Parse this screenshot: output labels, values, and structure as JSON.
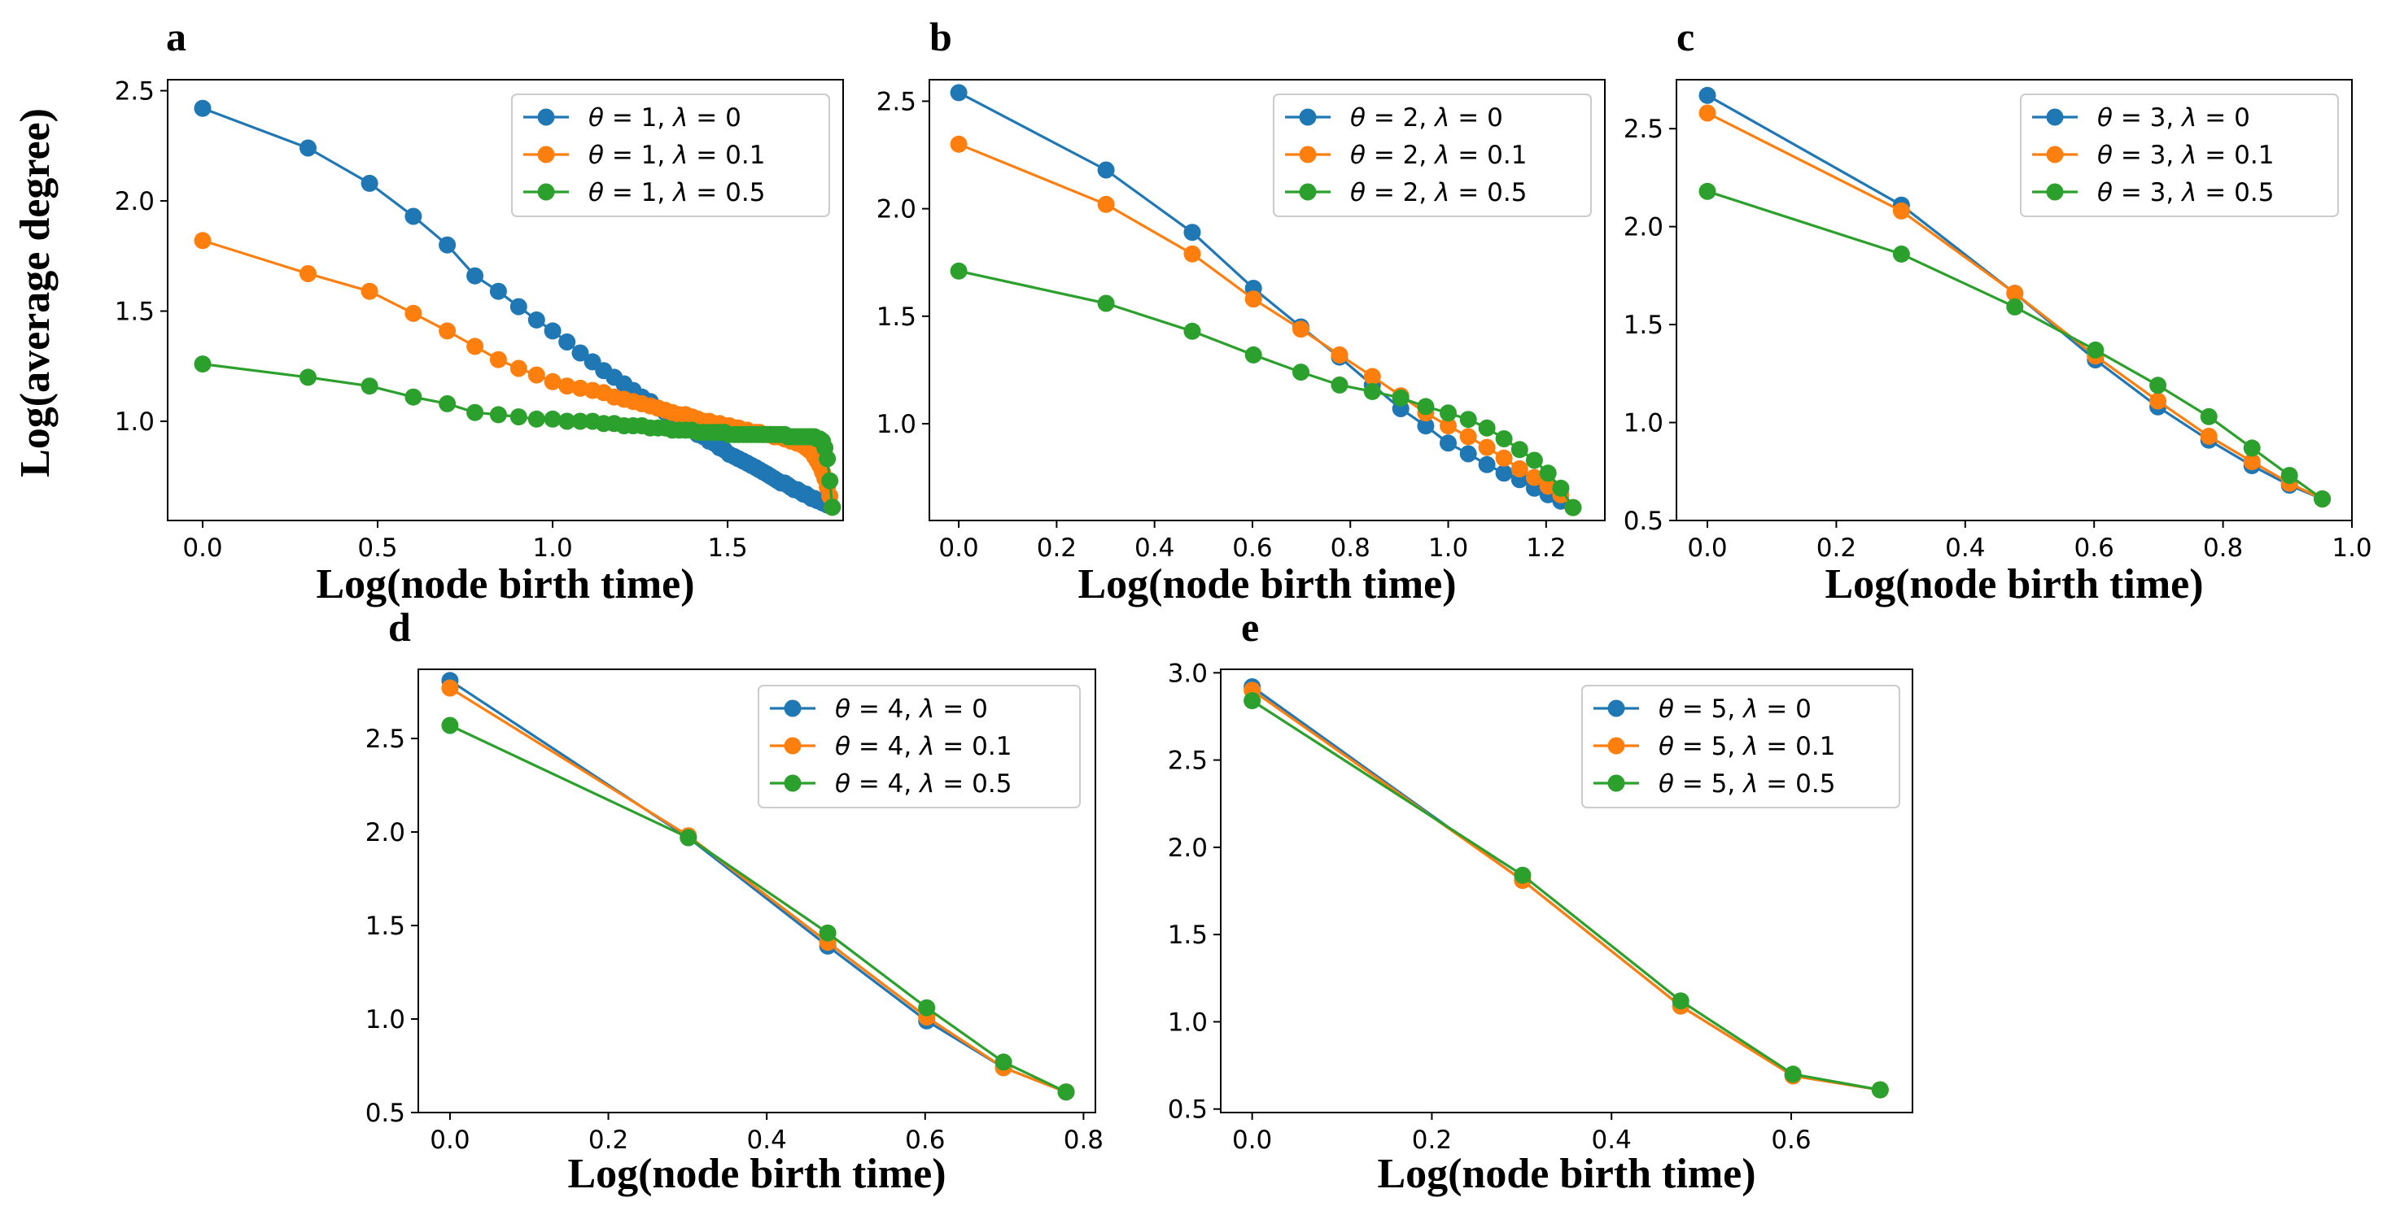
{
  "figure": {
    "ylabel": "Log(average degree)"
  },
  "colors": {
    "blue": "#1f77b4",
    "orange": "#ff7f0e",
    "green": "#2ca02c"
  },
  "chart_data": [
    {
      "panel": "a",
      "type": "line",
      "title": "",
      "xlabel": "Log(node birth time)",
      "xlim": [
        -0.1,
        1.83
      ],
      "ylim": [
        0.55,
        2.55
      ],
      "xticks": [
        0.0,
        0.5,
        1.0,
        1.5
      ],
      "xtick_labels": [
        "0.0",
        "0.5",
        "1.0",
        "1.5"
      ],
      "yticks": [
        1.0,
        1.5,
        2.0,
        2.5
      ],
      "ytick_labels": [
        "1.0",
        "1.5",
        "2.0",
        "2.5"
      ],
      "legend_position": "top-right",
      "series": [
        {
          "name": "θ = 1, λ = 0",
          "legend": {
            "theta": "1",
            "lambda": "0"
          },
          "color": "#1f77b4",
          "x": [
            0.0,
            0.301,
            0.477,
            0.602,
            0.699,
            0.778,
            0.845,
            0.903,
            0.954,
            1.0,
            1.041,
            1.079,
            1.114,
            1.146,
            1.176,
            1.204,
            1.23,
            1.255,
            1.279,
            1.301,
            1.322,
            1.342,
            1.362,
            1.38,
            1.398,
            1.415,
            1.431,
            1.447,
            1.462,
            1.477,
            1.491,
            1.505,
            1.519,
            1.531,
            1.544,
            1.556,
            1.568,
            1.58,
            1.591,
            1.602,
            1.613,
            1.623,
            1.633,
            1.643,
            1.653,
            1.663,
            1.672,
            1.681,
            1.69,
            1.699,
            1.708,
            1.716,
            1.724,
            1.732,
            1.74,
            1.748,
            1.756,
            1.763,
            1.771,
            1.778,
            1.785,
            1.792,
            1.799
          ],
          "y": [
            2.42,
            2.24,
            2.08,
            1.93,
            1.8,
            1.66,
            1.59,
            1.52,
            1.46,
            1.41,
            1.36,
            1.31,
            1.27,
            1.23,
            1.2,
            1.17,
            1.14,
            1.11,
            1.09,
            1.06,
            1.04,
            1.02,
            1.0,
            0.98,
            0.96,
            0.94,
            0.93,
            0.91,
            0.9,
            0.88,
            0.87,
            0.85,
            0.84,
            0.83,
            0.82,
            0.81,
            0.8,
            0.79,
            0.78,
            0.77,
            0.76,
            0.75,
            0.74,
            0.73,
            0.72,
            0.72,
            0.71,
            0.7,
            0.69,
            0.69,
            0.68,
            0.67,
            0.67,
            0.66,
            0.65,
            0.65,
            0.64,
            0.64,
            0.63,
            0.63,
            0.62,
            0.62,
            0.61
          ]
        },
        {
          "name": "θ = 1, λ = 0.1",
          "legend": {
            "theta": "1",
            "lambda": "0.1"
          },
          "color": "#ff7f0e",
          "x": [
            0.0,
            0.301,
            0.477,
            0.602,
            0.699,
            0.778,
            0.845,
            0.903,
            0.954,
            1.0,
            1.041,
            1.079,
            1.114,
            1.146,
            1.176,
            1.204,
            1.23,
            1.255,
            1.279,
            1.301,
            1.322,
            1.342,
            1.362,
            1.38,
            1.398,
            1.415,
            1.431,
            1.447,
            1.462,
            1.477,
            1.491,
            1.505,
            1.519,
            1.531,
            1.544,
            1.556,
            1.568,
            1.58,
            1.591,
            1.602,
            1.613,
            1.623,
            1.633,
            1.643,
            1.653,
            1.663,
            1.672,
            1.681,
            1.69,
            1.699,
            1.708,
            1.716,
            1.724,
            1.732,
            1.74,
            1.748,
            1.756,
            1.763,
            1.771,
            1.778,
            1.785,
            1.792,
            1.799
          ],
          "y": [
            1.82,
            1.67,
            1.59,
            1.49,
            1.41,
            1.34,
            1.28,
            1.24,
            1.21,
            1.18,
            1.16,
            1.15,
            1.14,
            1.13,
            1.11,
            1.1,
            1.09,
            1.08,
            1.07,
            1.06,
            1.05,
            1.04,
            1.03,
            1.03,
            1.02,
            1.01,
            1.0,
            1.0,
            0.99,
            0.99,
            0.98,
            0.98,
            0.97,
            0.97,
            0.96,
            0.96,
            0.95,
            0.95,
            0.95,
            0.94,
            0.94,
            0.94,
            0.93,
            0.93,
            0.93,
            0.92,
            0.92,
            0.91,
            0.91,
            0.9,
            0.9,
            0.89,
            0.88,
            0.87,
            0.86,
            0.84,
            0.82,
            0.8,
            0.77,
            0.74,
            0.7,
            0.66,
            0.61
          ]
        },
        {
          "name": "θ = 1, λ = 0.5",
          "legend": {
            "theta": "1",
            "lambda": "0.5"
          },
          "color": "#2ca02c",
          "x": [
            0.0,
            0.301,
            0.477,
            0.602,
            0.699,
            0.778,
            0.845,
            0.903,
            0.954,
            1.0,
            1.041,
            1.079,
            1.114,
            1.146,
            1.176,
            1.204,
            1.23,
            1.255,
            1.279,
            1.301,
            1.322,
            1.342,
            1.362,
            1.38,
            1.398,
            1.415,
            1.431,
            1.447,
            1.462,
            1.477,
            1.491,
            1.505,
            1.519,
            1.531,
            1.544,
            1.556,
            1.568,
            1.58,
            1.591,
            1.602,
            1.613,
            1.623,
            1.633,
            1.643,
            1.653,
            1.663,
            1.672,
            1.681,
            1.69,
            1.699,
            1.708,
            1.716,
            1.724,
            1.732,
            1.74,
            1.748,
            1.756,
            1.763,
            1.771,
            1.778,
            1.785,
            1.792,
            1.799
          ],
          "y": [
            1.26,
            1.2,
            1.16,
            1.11,
            1.08,
            1.04,
            1.03,
            1.02,
            1.01,
            1.01,
            1.0,
            1.0,
            1.0,
            0.99,
            0.99,
            0.98,
            0.98,
            0.98,
            0.97,
            0.97,
            0.97,
            0.96,
            0.96,
            0.96,
            0.96,
            0.95,
            0.95,
            0.95,
            0.95,
            0.95,
            0.95,
            0.94,
            0.94,
            0.94,
            0.94,
            0.94,
            0.94,
            0.94,
            0.94,
            0.94,
            0.94,
            0.94,
            0.94,
            0.94,
            0.94,
            0.94,
            0.93,
            0.93,
            0.93,
            0.93,
            0.93,
            0.93,
            0.93,
            0.93,
            0.93,
            0.93,
            0.92,
            0.92,
            0.91,
            0.88,
            0.83,
            0.73,
            0.61
          ]
        }
      ]
    },
    {
      "panel": "b",
      "type": "line",
      "title": "",
      "xlabel": "Log(node birth time)",
      "xlim": [
        -0.06,
        1.32
      ],
      "ylim": [
        0.55,
        2.6
      ],
      "xticks": [
        0.0,
        0.2,
        0.4,
        0.6,
        0.8,
        1.0,
        1.2
      ],
      "xtick_labels": [
        "0.0",
        "0.2",
        "0.4",
        "0.6",
        "0.8",
        "1.0",
        "1.2"
      ],
      "yticks": [
        1.0,
        1.5,
        2.0,
        2.5
      ],
      "ytick_labels": [
        "1.0",
        "1.5",
        "2.0",
        "2.5"
      ],
      "legend_position": "top-right",
      "series": [
        {
          "name": "θ = 2, λ = 0",
          "legend": {
            "theta": "2",
            "lambda": "0"
          },
          "color": "#1f77b4",
          "x": [
            0.0,
            0.301,
            0.477,
            0.602,
            0.699,
            0.778,
            0.845,
            0.903,
            0.954,
            1.0,
            1.041,
            1.079,
            1.114,
            1.146,
            1.176,
            1.204,
            1.23,
            1.255
          ],
          "y": [
            2.54,
            2.18,
            1.89,
            1.63,
            1.45,
            1.31,
            1.18,
            1.07,
            0.99,
            0.91,
            0.86,
            0.81,
            0.77,
            0.74,
            0.7,
            0.67,
            0.64,
            0.61
          ]
        },
        {
          "name": "θ = 2, λ = 0.1",
          "legend": {
            "theta": "2",
            "lambda": "0.1"
          },
          "color": "#ff7f0e",
          "x": [
            0.0,
            0.301,
            0.477,
            0.602,
            0.699,
            0.778,
            0.845,
            0.903,
            0.954,
            1.0,
            1.041,
            1.079,
            1.114,
            1.146,
            1.176,
            1.204,
            1.23,
            1.255
          ],
          "y": [
            2.3,
            2.02,
            1.79,
            1.58,
            1.44,
            1.32,
            1.22,
            1.13,
            1.05,
            0.99,
            0.94,
            0.89,
            0.84,
            0.79,
            0.75,
            0.71,
            0.67,
            0.61
          ]
        },
        {
          "name": "θ = 2, λ = 0.5",
          "legend": {
            "theta": "2",
            "lambda": "0.5"
          },
          "color": "#2ca02c",
          "x": [
            0.0,
            0.301,
            0.477,
            0.602,
            0.699,
            0.778,
            0.845,
            0.903,
            0.954,
            1.0,
            1.041,
            1.079,
            1.114,
            1.146,
            1.176,
            1.204,
            1.23,
            1.255
          ],
          "y": [
            1.71,
            1.56,
            1.43,
            1.32,
            1.24,
            1.18,
            1.15,
            1.12,
            1.08,
            1.05,
            1.02,
            0.98,
            0.93,
            0.88,
            0.83,
            0.77,
            0.7,
            0.61
          ]
        }
      ]
    },
    {
      "panel": "c",
      "type": "line",
      "title": "",
      "xlabel": "Log(node birth time)",
      "xlim": [
        -0.048,
        1.0
      ],
      "ylim": [
        0.5,
        2.75
      ],
      "xticks": [
        0.0,
        0.2,
        0.4,
        0.6,
        0.8,
        1.0
      ],
      "xtick_labels": [
        "0.0",
        "0.2",
        "0.4",
        "0.6",
        "0.8",
        "1.0"
      ],
      "yticks": [
        0.5,
        1.0,
        1.5,
        2.0,
        2.5
      ],
      "ytick_labels": [
        "0.5",
        "1.0",
        "1.5",
        "2.0",
        "2.5"
      ],
      "legend_position": "top-right",
      "series": [
        {
          "name": "θ = 3, λ = 0",
          "legend": {
            "theta": "3",
            "lambda": "0"
          },
          "color": "#1f77b4",
          "x": [
            0.0,
            0.301,
            0.477,
            0.602,
            0.699,
            0.778,
            0.845,
            0.903,
            0.954
          ],
          "y": [
            2.67,
            2.11,
            1.66,
            1.32,
            1.08,
            0.91,
            0.78,
            0.68,
            0.61
          ]
        },
        {
          "name": "θ = 3, λ = 0.1",
          "legend": {
            "theta": "3",
            "lambda": "0.1"
          },
          "color": "#ff7f0e",
          "x": [
            0.0,
            0.301,
            0.477,
            0.602,
            0.699,
            0.778,
            0.845,
            0.903,
            0.954
          ],
          "y": [
            2.58,
            2.08,
            1.66,
            1.34,
            1.11,
            0.93,
            0.8,
            0.69,
            0.61
          ]
        },
        {
          "name": "θ = 3, λ = 0.5",
          "legend": {
            "theta": "3",
            "lambda": "0.5"
          },
          "color": "#2ca02c",
          "x": [
            0.0,
            0.301,
            0.477,
            0.602,
            0.699,
            0.778,
            0.845,
            0.903,
            0.954
          ],
          "y": [
            2.18,
            1.86,
            1.59,
            1.37,
            1.19,
            1.03,
            0.87,
            0.73,
            0.61
          ]
        }
      ]
    },
    {
      "panel": "d",
      "type": "line",
      "title": "",
      "xlabel": "Log(node birth time)",
      "xlim": [
        -0.04,
        0.815
      ],
      "ylim": [
        0.5,
        2.87
      ],
      "xticks": [
        0.0,
        0.2,
        0.4,
        0.6,
        0.8
      ],
      "xtick_labels": [
        "0.0",
        "0.2",
        "0.4",
        "0.6",
        "0.8"
      ],
      "yticks": [
        0.5,
        1.0,
        1.5,
        2.0,
        2.5
      ],
      "ytick_labels": [
        "0.5",
        "1.0",
        "1.5",
        "2.0",
        "2.5"
      ],
      "legend_position": "top-right",
      "series": [
        {
          "name": "θ = 4, λ = 0",
          "legend": {
            "theta": "4",
            "lambda": "0"
          },
          "color": "#1f77b4",
          "x": [
            0.0,
            0.301,
            0.477,
            0.602,
            0.699,
            0.778
          ],
          "y": [
            2.81,
            1.97,
            1.39,
            0.99,
            0.74,
            0.61
          ]
        },
        {
          "name": "θ = 4, λ = 0.1",
          "legend": {
            "theta": "4",
            "lambda": "0.1"
          },
          "color": "#ff7f0e",
          "x": [
            0.0,
            0.301,
            0.477,
            0.602,
            0.699,
            0.778
          ],
          "y": [
            2.77,
            1.98,
            1.41,
            1.01,
            0.74,
            0.61
          ]
        },
        {
          "name": "θ = 4, λ = 0.5",
          "legend": {
            "theta": "4",
            "lambda": "0.5"
          },
          "color": "#2ca02c",
          "x": [
            0.0,
            0.301,
            0.477,
            0.602,
            0.699,
            0.778
          ],
          "y": [
            2.57,
            1.97,
            1.46,
            1.06,
            0.77,
            0.61
          ]
        }
      ]
    },
    {
      "panel": "e",
      "type": "line",
      "title": "",
      "xlabel": "Log(node birth time)",
      "xlim": [
        -0.035,
        0.735
      ],
      "ylim": [
        0.48,
        3.02
      ],
      "xticks": [
        0.0,
        0.2,
        0.4,
        0.6
      ],
      "xtick_labels": [
        "0.0",
        "0.2",
        "0.4",
        "0.6"
      ],
      "yticks": [
        0.5,
        1.0,
        1.5,
        2.0,
        2.5,
        3.0
      ],
      "ytick_labels": [
        "0.5",
        "1.0",
        "1.5",
        "2.0",
        "2.5",
        "3.0"
      ],
      "legend_position": "top-right",
      "series": [
        {
          "name": "θ = 5, λ = 0",
          "legend": {
            "theta": "5",
            "lambda": "0"
          },
          "color": "#1f77b4",
          "x": [
            0.0,
            0.301,
            0.477,
            0.602,
            0.699
          ],
          "y": [
            2.92,
            1.81,
            1.09,
            0.69,
            0.61
          ]
        },
        {
          "name": "θ = 5, λ = 0.1",
          "legend": {
            "theta": "5",
            "lambda": "0.1"
          },
          "color": "#ff7f0e",
          "x": [
            0.0,
            0.301,
            0.477,
            0.602,
            0.699
          ],
          "y": [
            2.9,
            1.81,
            1.09,
            0.69,
            0.61
          ]
        },
        {
          "name": "θ = 5, λ = 0.5",
          "legend": {
            "theta": "5",
            "lambda": "0.5"
          },
          "color": "#2ca02c",
          "x": [
            0.0,
            0.301,
            0.477,
            0.602,
            0.699
          ],
          "y": [
            2.84,
            1.84,
            1.12,
            0.7,
            0.61
          ]
        }
      ]
    }
  ]
}
